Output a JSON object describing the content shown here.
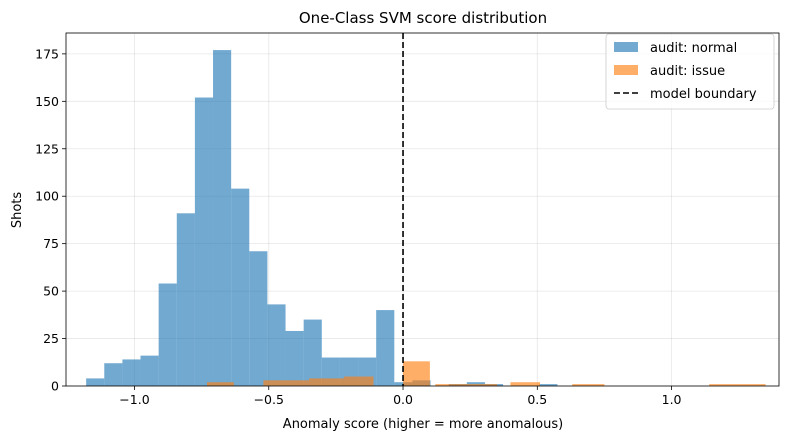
{
  "chart_data": {
    "type": "bar",
    "title": "One-Class SVM score distribution",
    "xlabel": "Anomaly score (higher = more anomalous)",
    "ylabel": "Shots",
    "xlim": [
      -1.255,
      1.4
    ],
    "ylim": [
      0,
      186
    ],
    "xticks": [
      -1.0,
      -0.5,
      0.0,
      0.5,
      1.0
    ],
    "xtick_labels": [
      "−1.0",
      "−0.5",
      "0.0",
      "0.5",
      "1.0"
    ],
    "yticks": [
      0,
      25,
      50,
      75,
      100,
      125,
      150,
      175
    ],
    "grid": true,
    "legend_position": "top-right",
    "series": [
      {
        "name": "audit: normal",
        "color": "#1f77b4",
        "opacity": 0.63,
        "bin_width": 0.0675,
        "bin_edges_start": -1.18,
        "values": [
          4,
          12,
          14,
          16,
          54,
          91,
          152,
          177,
          104,
          71,
          43,
          29,
          35,
          15,
          15,
          15,
          40,
          2,
          3,
          0,
          1,
          2,
          1,
          0,
          0,
          1
        ]
      },
      {
        "name": "audit: issue",
        "color": "#ff7f0e",
        "opacity": 0.63,
        "bins": [
          {
            "x0": -0.73,
            "x1": -0.63,
            "v": 2
          },
          {
            "x0": -0.52,
            "x1": -0.35,
            "v": 3
          },
          {
            "x0": -0.35,
            "x1": -0.22,
            "v": 4
          },
          {
            "x0": -0.22,
            "x1": -0.11,
            "v": 5
          },
          {
            "x0": 0.0,
            "x1": 0.1,
            "v": 13
          },
          {
            "x0": 0.12,
            "x1": 0.35,
            "v": 1
          },
          {
            "x0": 0.4,
            "x1": 0.51,
            "v": 2
          },
          {
            "x0": 0.63,
            "x1": 0.75,
            "v": 1
          },
          {
            "x0": 1.14,
            "x1": 1.35,
            "v": 1
          }
        ]
      }
    ],
    "boundary": {
      "name": "model boundary",
      "x": 0.0,
      "color": "#000000",
      "style": "dashed"
    }
  }
}
